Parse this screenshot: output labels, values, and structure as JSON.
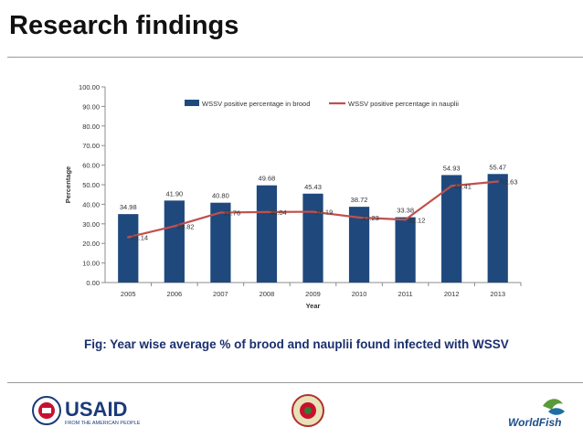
{
  "slide": {
    "title": "Research findings",
    "caption": "Fig: Year wise average % of brood and nauplii found infected with WSSV"
  },
  "logos": {
    "usaid_text": "USAID",
    "usaid_tagline": "FROM THE AMERICAN PEOPLE",
    "worldfish_text": "WorldFish"
  },
  "colors": {
    "bar": "#1f497d",
    "line": "#c0504d",
    "title_text": "#111111",
    "caption_text": "#1a2f6e"
  },
  "chart_data": {
    "type": "bar",
    "categories": [
      "2005",
      "2006",
      "2007",
      "2008",
      "2009",
      "2010",
      "2011",
      "2012",
      "2013"
    ],
    "series": [
      {
        "name": "WSSV positive percentage in brood",
        "type": "bar",
        "values": [
          34.98,
          41.9,
          40.8,
          49.68,
          45.43,
          38.72,
          33.38,
          54.93,
          55.47
        ],
        "labels": [
          "34.98",
          "41.90",
          "40.80",
          "49.68",
          "45.43",
          "38.72",
          "33.38",
          "54.93",
          "55.47"
        ]
      },
      {
        "name": "WSSV positive percentage in nauplii",
        "type": "line",
        "values": [
          23.14,
          28.82,
          35.76,
          36.04,
          36.19,
          33.23,
          32.12,
          49.41,
          51.63
        ],
        "labels": [
          "23.14",
          "28.82",
          "35.76",
          "36.04",
          "36.19",
          "33.23",
          "32.12",
          "49.41",
          "51.63"
        ]
      }
    ],
    "xlabel": "Year",
    "ylabel": "Percentage",
    "ylim": [
      0,
      100
    ],
    "yticks": [
      "0.00",
      "10.00",
      "20.00",
      "30.00",
      "40.00",
      "50.00",
      "60.00",
      "70.00",
      "80.00",
      "90.00",
      "100.00"
    ],
    "grid": false,
    "legend": "top-center"
  }
}
